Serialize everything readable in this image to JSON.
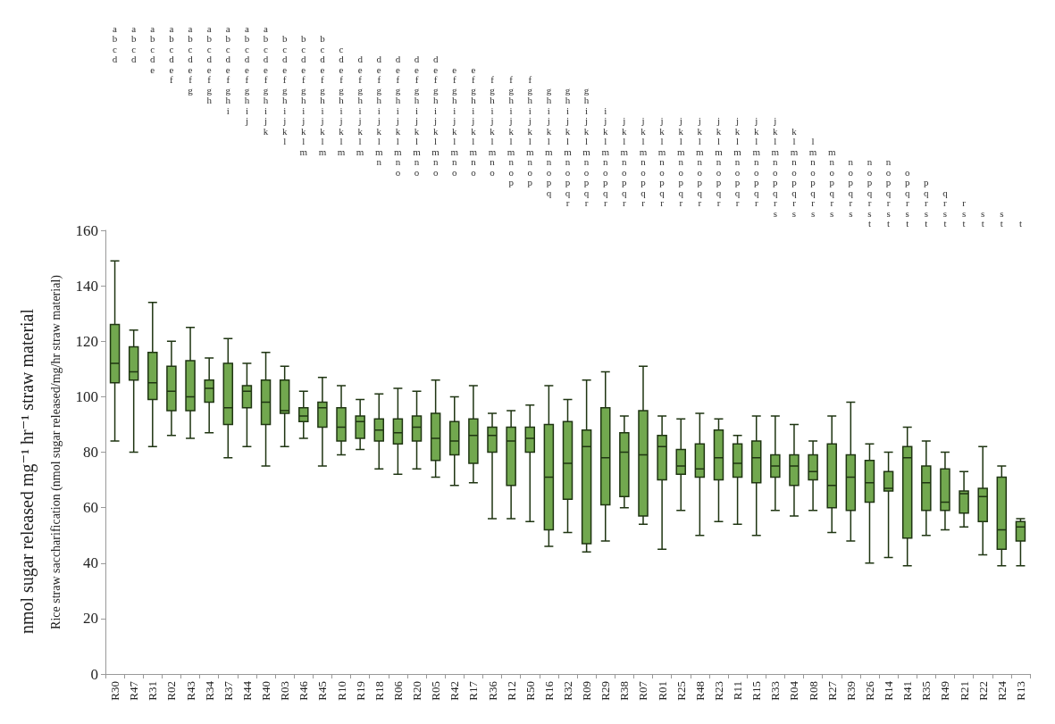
{
  "chart_data": {
    "type": "box",
    "ylabel": "Rice straw saccharification (nmol sugar released/mg/hr straw material)",
    "categories": [
      "R30",
      "R47",
      "R31",
      "R02",
      "R43",
      "R34",
      "R37",
      "R44",
      "R40",
      "R03",
      "R46",
      "R45",
      "R10",
      "R19",
      "R18",
      "R06",
      "R20",
      "R05",
      "R42",
      "R17",
      "R36",
      "R12",
      "R50",
      "R16",
      "R32",
      "R09",
      "R29",
      "R38",
      "R07",
      "R01",
      "R25",
      "R48",
      "R23",
      "R11",
      "R15",
      "R33",
      "R04",
      "R08",
      "R27",
      "R39",
      "R26",
      "R14",
      "R41",
      "R35",
      "R49",
      "R21",
      "R22",
      "R24",
      "R13"
    ],
    "color": "#72a84f",
    "boxes": [
      {
        "low": 84,
        "q1": 105,
        "median": 112,
        "q3": 126,
        "high": 149
      },
      {
        "low": 80,
        "q1": 106,
        "median": 109,
        "q3": 118,
        "high": 124
      },
      {
        "low": 82,
        "q1": 99,
        "median": 105,
        "q3": 116,
        "high": 134
      },
      {
        "low": 86,
        "q1": 95,
        "median": 102,
        "q3": 111,
        "high": 120
      },
      {
        "low": 85,
        "q1": 95,
        "median": 100,
        "q3": 113,
        "high": 125
      },
      {
        "low": 87,
        "q1": 98,
        "median": 103,
        "q3": 106,
        "high": 114
      },
      {
        "low": 78,
        "q1": 90,
        "median": 96,
        "q3": 112,
        "high": 121
      },
      {
        "low": 82,
        "q1": 96,
        "median": 102,
        "q3": 104,
        "high": 112
      },
      {
        "low": 75,
        "q1": 90,
        "median": 98,
        "q3": 106,
        "high": 116
      },
      {
        "low": 82,
        "q1": 94,
        "median": 95,
        "q3": 106,
        "high": 111
      },
      {
        "low": 85,
        "q1": 91,
        "median": 93,
        "q3": 96,
        "high": 102
      },
      {
        "low": 75,
        "q1": 89,
        "median": 96,
        "q3": 98,
        "high": 107
      },
      {
        "low": 79,
        "q1": 84,
        "median": 89,
        "q3": 96,
        "high": 104
      },
      {
        "low": 81,
        "q1": 85,
        "median": 91,
        "q3": 93,
        "high": 99
      },
      {
        "low": 74,
        "q1": 84,
        "median": 88,
        "q3": 92,
        "high": 101
      },
      {
        "low": 72,
        "q1": 83,
        "median": 87,
        "q3": 92,
        "high": 103
      },
      {
        "low": 74,
        "q1": 84,
        "median": 89,
        "q3": 93,
        "high": 102
      },
      {
        "low": 71,
        "q1": 77,
        "median": 85,
        "q3": 94,
        "high": 106
      },
      {
        "low": 68,
        "q1": 79,
        "median": 84,
        "q3": 91,
        "high": 100
      },
      {
        "low": 69,
        "q1": 76,
        "median": 86,
        "q3": 92,
        "high": 104
      },
      {
        "low": 56,
        "q1": 80,
        "median": 86,
        "q3": 89,
        "high": 94
      },
      {
        "low": 56,
        "q1": 68,
        "median": 84,
        "q3": 89,
        "high": 95
      },
      {
        "low": 55,
        "q1": 80,
        "median": 85,
        "q3": 89,
        "high": 97
      },
      {
        "low": 46,
        "q1": 52,
        "median": 71,
        "q3": 90,
        "high": 104
      },
      {
        "low": 51,
        "q1": 63,
        "median": 76,
        "q3": 91,
        "high": 99
      },
      {
        "low": 44,
        "q1": 47,
        "median": 82,
        "q3": 88,
        "high": 106
      },
      {
        "low": 48,
        "q1": 61,
        "median": 78,
        "q3": 96,
        "high": 109
      },
      {
        "low": 60,
        "q1": 64,
        "median": 80,
        "q3": 87,
        "high": 93
      },
      {
        "low": 54,
        "q1": 57,
        "median": 79,
        "q3": 95,
        "high": 111
      },
      {
        "low": 45,
        "q1": 70,
        "median": 82,
        "q3": 86,
        "high": 93
      },
      {
        "low": 59,
        "q1": 72,
        "median": 75,
        "q3": 81,
        "high": 92
      },
      {
        "low": 50,
        "q1": 71,
        "median": 74,
        "q3": 83,
        "high": 94
      },
      {
        "low": 55,
        "q1": 70,
        "median": 78,
        "q3": 88,
        "high": 92
      },
      {
        "low": 54,
        "q1": 71,
        "median": 76,
        "q3": 83,
        "high": 86
      },
      {
        "low": 50,
        "q1": 69,
        "median": 78,
        "q3": 84,
        "high": 93
      },
      {
        "low": 59,
        "q1": 71,
        "median": 75,
        "q3": 79,
        "high": 93
      },
      {
        "low": 57,
        "q1": 68,
        "median": 75,
        "q3": 79,
        "high": 90
      },
      {
        "low": 59,
        "q1": 70,
        "median": 73,
        "q3": 79,
        "high": 84
      },
      {
        "low": 51,
        "q1": 60,
        "median": 68,
        "q3": 83,
        "high": 93
      },
      {
        "low": 48,
        "q1": 59,
        "median": 71,
        "q3": 79,
        "high": 98
      },
      {
        "low": 40,
        "q1": 62,
        "median": 69,
        "q3": 77,
        "high": 83
      },
      {
        "low": 42,
        "q1": 66,
        "median": 67,
        "q3": 73,
        "high": 80
      },
      {
        "low": 39,
        "q1": 49,
        "median": 78,
        "q3": 82,
        "high": 89
      },
      {
        "low": 50,
        "q1": 59,
        "median": 69,
        "q3": 75,
        "high": 84
      },
      {
        "low": 52,
        "q1": 59,
        "median": 62,
        "q3": 74,
        "high": 80
      },
      {
        "low": 53,
        "q1": 58,
        "median": 65,
        "q3": 66,
        "high": 73
      },
      {
        "low": 43,
        "q1": 55,
        "median": 64,
        "q3": 67,
        "high": 82
      },
      {
        "low": 39,
        "q1": 45,
        "median": 52,
        "q3": 71,
        "high": 75
      },
      {
        "low": 39,
        "q1": 48,
        "median": 53,
        "q3": 55,
        "high": 56
      }
    ],
    "ylim": [
      0,
      160
    ],
    "yticks": [
      0,
      20,
      40,
      60,
      80,
      100,
      120,
      140,
      160
    ],
    "grid": false,
    "annotations": [
      "nmol sugar released mg⁻¹ hr⁻¹ straw material",
      "abcd",
      "abcd",
      "abcde",
      "abcdef",
      "abcdefg",
      "abcdefgh",
      "abcdefghi",
      "abcdefghij",
      "abcdefghijk",
      "bcdefghijkl",
      "bcdefghijklm",
      "bcdefghijklm",
      "cdefghijklm",
      "defghijklm",
      "defghijklmn",
      "defghijklmno",
      "defghijklmno",
      "defghijklmno",
      "efghijklmno",
      "efghijklmno",
      "fghijklmno",
      "fghijklmnop",
      "fghijklmnop",
      "ghijklmnopq",
      "ghijklmnopqr",
      "ghijklmnopqr",
      "ijklmnopqr",
      "jklmnopqr",
      "jklmnopqr",
      "jklmnopqr",
      "jklmnopqr",
      "jklmnopqr",
      "jklmnopqr",
      "jklmnopqr",
      "jklmnopqr",
      "jklmnopqrs",
      "klmnopqrs",
      "lmnopqrs",
      "mnopqrs",
      "nopqrs",
      "nopqrst",
      "nopqrst",
      "opqrst",
      "pqrst",
      "qrst",
      "rst",
      "st",
      "st",
      "t"
    ]
  }
}
